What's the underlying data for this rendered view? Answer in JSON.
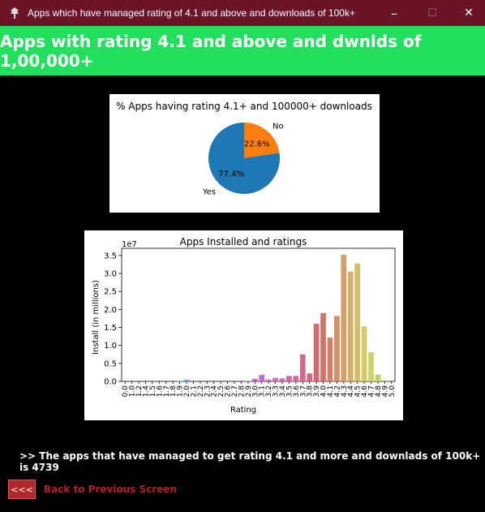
{
  "window": {
    "title": "Apps which have managed rating of 4.1 and above and downloads of 100k+",
    "icon": "app-icon",
    "controls": {
      "minimize": "–",
      "maximize": "☐",
      "close": "✕"
    }
  },
  "header": {
    "title": "Apps with rating 4.1 and above and dwnlds of 1,00,000+",
    "bg_color": "#22e05d"
  },
  "pie_chart": {
    "chart_data": {
      "type": "pie",
      "title": "% Apps having rating 4.1+ and 100000+ downloads",
      "slices": [
        {
          "label": "Yes",
          "value": 77.4,
          "pct_label": "77.4%",
          "color": "#1f77b4"
        },
        {
          "label": "No",
          "value": 22.6,
          "pct_label": "22.6%",
          "color": "#ff7f0e"
        }
      ]
    }
  },
  "bar_chart": {
    "chart_data": {
      "type": "bar",
      "title": "Apps Installed and ratings",
      "xlabel": "Rating",
      "ylabel": "Install (in millions)",
      "offset_label": "1e7",
      "ylim": [
        0,
        3.7
      ],
      "yticks": [
        "0.0",
        "0.5",
        "1.0",
        "1.5",
        "2.0",
        "2.5",
        "3.0",
        "3.5"
      ],
      "categories": [
        "0.0",
        "1.0",
        "1.2",
        "1.4",
        "1.5",
        "1.6",
        "1.7",
        "1.8",
        "1.9",
        "2.0",
        "2.1",
        "2.2",
        "2.3",
        "2.4",
        "2.5",
        "2.6",
        "2.7",
        "2.8",
        "2.9",
        "3.0",
        "3.1",
        "3.2",
        "3.3",
        "3.4",
        "3.5",
        "3.6",
        "3.7",
        "3.8",
        "3.9",
        "4.0",
        "4.1",
        "4.2",
        "4.3",
        "4.4",
        "4.5",
        "4.6",
        "4.7",
        "4.8",
        "4.9",
        "5.0"
      ],
      "values": [
        0.0,
        0.0,
        0.0,
        0.0,
        0.0,
        0.0,
        0.0,
        0.0,
        0.01,
        0.05,
        0.0,
        0.0,
        0.0,
        0.0,
        0.0,
        0.0,
        0.0,
        0.0,
        0.01,
        0.07,
        0.18,
        0.05,
        0.1,
        0.08,
        0.15,
        0.15,
        0.75,
        0.22,
        1.6,
        1.9,
        1.22,
        1.82,
        3.52,
        3.05,
        3.28,
        1.53,
        0.81,
        0.19,
        0.03,
        0.0
      ]
    }
  },
  "summary": {
    "text": ">>  The apps that have managed to get rating 4.1 and more and downlads of 100k+ is 4739"
  },
  "back": {
    "button_label": "<<<",
    "label": "Back to Previous Screen"
  }
}
